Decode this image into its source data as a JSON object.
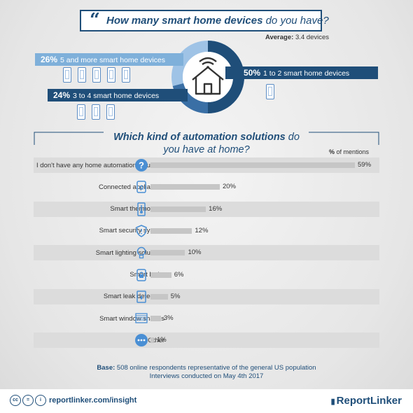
{
  "title": {
    "pre": "How many smart home devices",
    "post": " do you have?"
  },
  "average": {
    "label": "Average:",
    "value": "3.4 devices"
  },
  "device_groups": [
    {
      "pct": "26%",
      "label": "5 and more smart home devices",
      "phones": 5
    },
    {
      "pct": "50%",
      "label": "1 to 2 smart home devices",
      "phones": 1
    },
    {
      "pct": "24%",
      "label": "3 to 4 smart home devices",
      "phones": 3
    }
  ],
  "question2": {
    "bold": "Which kind of automation solutions",
    "rest": " do you have at home?"
  },
  "mentions_header": {
    "bold": "%",
    "rest": " of  mentions"
  },
  "colors": {
    "dark_blue": "#1f4e79",
    "light_blue": "#7fb0da",
    "bar": "#c6c6c6",
    "icon": "#4a8fd4"
  },
  "chart_data": {
    "type": "bar",
    "orientation": "horizontal",
    "categories": [
      "I don't have any home automation solutions",
      "Connected appliances",
      "Smart thermostats",
      "Smart security system",
      "Smart lighting solutions",
      "Smart locks",
      "Smart leak detectors",
      "Smart window shades",
      "Other"
    ],
    "values": [
      59,
      20,
      16,
      12,
      10,
      6,
      5,
      3,
      1
    ],
    "value_labels": [
      "59%",
      "20%",
      "16%",
      "12%",
      "10%",
      "6%",
      "5%",
      "3%",
      "1%"
    ],
    "icons": [
      "question-icon",
      "appliance-icon",
      "thermometer-icon",
      "shield-icon",
      "bulb-icon",
      "lock-icon",
      "leak-icon",
      "shades-icon",
      "dots-icon"
    ],
    "title": "Which kind of automation solutions do you have at home?",
    "xlabel": "% of  mentions",
    "xlim": [
      0,
      59
    ]
  },
  "base": {
    "bold": "Base:",
    "line1": " 508 online respondents representative of the general US population",
    "line2": "Interviews conducted on May 4th 2017"
  },
  "footer": {
    "link": "reportlinker.com/insight",
    "logo": "ReportLinker"
  }
}
